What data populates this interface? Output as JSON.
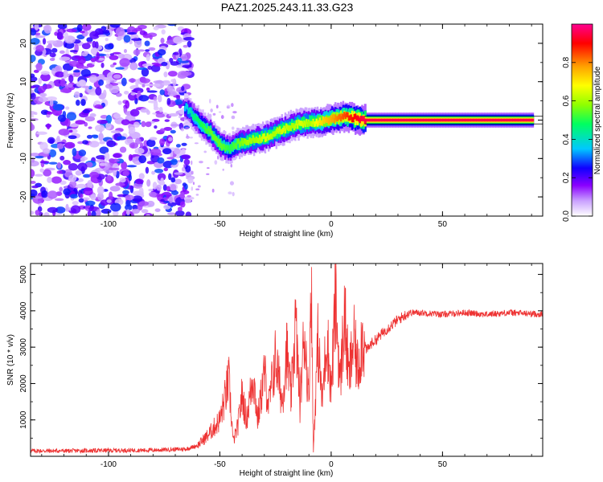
{
  "title": "PAZ1.2025.243.11.33.G23",
  "chart_data": [
    {
      "type": "heatmap",
      "xlabel": "Height of straight line (km)",
      "ylabel": "Frequency (Hz)",
      "xlim": [
        -135,
        95
      ],
      "ylim": [
        -25,
        25
      ],
      "xticks": [
        -100,
        -50,
        0,
        50
      ],
      "yticks": [
        -20,
        -10,
        0,
        10,
        20
      ],
      "colorbar": {
        "label": "Normalized spectral amplitude",
        "range": [
          0,
          1
        ],
        "ticks": [
          "0.0",
          "0.2",
          "0.4",
          "0.6",
          "0.8"
        ],
        "tick_values": [
          0,
          0.2,
          0.4,
          0.6,
          0.8
        ],
        "colors": [
          "#ffffff",
          "#c9a0ff",
          "#8a00ff",
          "#1000ff",
          "#00c8ff",
          "#00ff60",
          "#90ff00",
          "#ffff00",
          "#ffa000",
          "#ff0000",
          "#ff0090"
        ]
      },
      "ridge": {
        "description": "frequency track of signal vs height",
        "x": [
          -66,
          -62,
          -58,
          -54,
          -50,
          -46,
          -42,
          -38,
          -34,
          -30,
          -26,
          -22,
          -18,
          -14,
          -10,
          -6,
          -2,
          2,
          6,
          10,
          14,
          20,
          30,
          40,
          50,
          60,
          70,
          80,
          90
        ],
        "y": [
          3.5,
          1,
          -1.5,
          -3.5,
          -6.5,
          -7.5,
          -6,
          -5.5,
          -5,
          -4.5,
          -3.5,
          -2.5,
          -1.5,
          -1,
          -0.5,
          -0.5,
          0,
          0.5,
          1,
          0.5,
          0,
          0,
          0,
          0,
          0,
          0,
          0,
          0,
          0
        ],
        "amplitude": [
          0.35,
          0.45,
          0.5,
          0.55,
          0.55,
          0.5,
          0.55,
          0.6,
          0.6,
          0.65,
          0.6,
          0.65,
          0.6,
          0.65,
          0.6,
          0.7,
          0.75,
          0.8,
          0.85,
          0.9,
          0.95,
          0.95,
          0.95,
          0.95,
          0.95,
          0.95,
          0.95,
          0.95,
          0.95
        ]
      },
      "noise_region": {
        "x_from": -135,
        "x_to": -65,
        "amplitude_range": [
          0.05,
          0.3
        ]
      }
    },
    {
      "type": "line",
      "xlabel": "Height of straight line (km)",
      "ylabel": "SNR (10 * v/v)",
      "xlim": [
        -135,
        95
      ],
      "ylim": [
        0,
        5300
      ],
      "xticks": [
        -100,
        -50,
        0,
        50
      ],
      "yticks": [
        1000,
        2000,
        3000,
        4000,
        5000
      ],
      "color": "#ee3333",
      "series": [
        {
          "name": "SNR",
          "x": [
            -135,
            -120,
            -100,
            -80,
            -65,
            -60,
            -55,
            -50,
            -48,
            -46,
            -45,
            -44,
            -42,
            -40,
            -38,
            -35,
            -33,
            -30,
            -28,
            -25,
            -22,
            -20,
            -18,
            -16,
            -14,
            -12,
            -10,
            -9,
            -8,
            -6,
            -4,
            -2,
            0,
            2,
            4,
            6,
            8,
            10,
            12,
            14,
            16,
            18,
            20,
            25,
            30,
            35,
            40,
            50,
            60,
            70,
            80,
            95
          ],
          "y": [
            150,
            150,
            160,
            170,
            200,
            300,
            600,
            1000,
            1500,
            2100,
            1300,
            400,
            800,
            1700,
            1000,
            2250,
            1000,
            2300,
            1400,
            2700,
            1500,
            2900,
            1600,
            3700,
            1400,
            3500,
            1500,
            5300,
            100,
            3200,
            1500,
            3400,
            1800,
            4300,
            2000,
            3900,
            2100,
            3200,
            2400,
            3300,
            2900,
            3100,
            3200,
            3500,
            3750,
            3950,
            3950,
            3900,
            3950,
            3900,
            3950,
            3900
          ]
        }
      ]
    }
  ]
}
